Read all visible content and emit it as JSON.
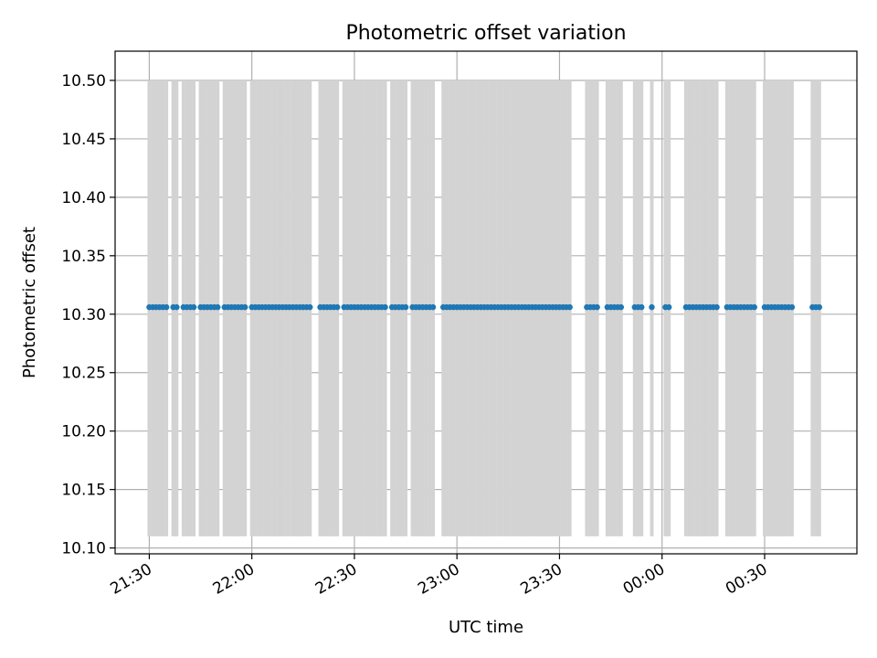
{
  "chart_data": {
    "type": "scatter",
    "title": "Photometric offset variation",
    "xlabel": "UTC time",
    "ylabel": "Photometric offset",
    "xlim": [
      "21:20",
      "00:57"
    ],
    "ylim": [
      10.095,
      10.525
    ],
    "x_tick_labels": [
      "21:30",
      "22:00",
      "22:30",
      "23:00",
      "23:30",
      "00:00",
      "00:30"
    ],
    "y_tick_labels": [
      "10.10",
      "10.15",
      "10.20",
      "10.25",
      "10.30",
      "10.35",
      "10.40",
      "10.45",
      "10.50"
    ],
    "grid": true,
    "colors": {
      "points": "#1f77b4",
      "error_bars": "#d3d3d3",
      "grid": "#b0b0b0"
    },
    "error_bar_range": [
      10.11,
      10.5
    ],
    "series": [
      {
        "y_value": 10.306,
        "x": [
          "21:30",
          "21:31",
          "21:32",
          "21:33",
          "21:34",
          "21:35",
          "21:37",
          "21:38",
          "21:40",
          "21:41",
          "21:42",
          "21:43",
          "21:45",
          "21:46",
          "21:47",
          "21:48",
          "21:49",
          "21:50",
          "21:52",
          "21:53",
          "21:54",
          "21:55",
          "21:56",
          "21:57",
          "21:58",
          "22:00",
          "22:01",
          "22:02",
          "22:03",
          "22:04",
          "22:05",
          "22:06",
          "22:07",
          "22:08",
          "22:09",
          "22:10",
          "22:11",
          "22:12",
          "22:13",
          "22:14",
          "22:15",
          "22:16",
          "22:17",
          "22:20",
          "22:21",
          "22:22",
          "22:23",
          "22:24",
          "22:25",
          "22:27",
          "22:28",
          "22:29",
          "22:30",
          "22:31",
          "22:32",
          "22:33",
          "22:34",
          "22:35",
          "22:36",
          "22:37",
          "22:38",
          "22:39",
          "22:41",
          "22:42",
          "22:43",
          "22:44",
          "22:45",
          "22:47",
          "22:48",
          "22:49",
          "22:50",
          "22:51",
          "22:52",
          "22:53",
          "22:56",
          "22:57",
          "22:58",
          "22:59",
          "23:00",
          "23:01",
          "23:02",
          "23:03",
          "23:04",
          "23:05",
          "23:06",
          "23:07",
          "23:08",
          "23:09",
          "23:10",
          "23:11",
          "23:12",
          "23:13",
          "23:14",
          "23:15",
          "23:16",
          "23:17",
          "23:18",
          "23:19",
          "23:20",
          "23:21",
          "23:22",
          "23:23",
          "23:24",
          "23:25",
          "23:26",
          "23:27",
          "23:28",
          "23:29",
          "23:30",
          "23:31",
          "23:32",
          "23:33",
          "23:38",
          "23:39",
          "23:40",
          "23:41",
          "23:44",
          "23:45",
          "23:46",
          "23:47",
          "23:48",
          "23:52",
          "23:53",
          "23:54",
          "23:57",
          "00:01",
          "00:02",
          "00:07",
          "00:08",
          "00:09",
          "00:10",
          "00:11",
          "00:12",
          "00:13",
          "00:14",
          "00:15",
          "00:16",
          "00:19",
          "00:20",
          "00:21",
          "00:22",
          "00:23",
          "00:24",
          "00:25",
          "00:26",
          "00:27",
          "00:30",
          "00:31",
          "00:32",
          "00:33",
          "00:34",
          "00:35",
          "00:36",
          "00:37",
          "00:38",
          "00:44",
          "00:45",
          "00:46"
        ]
      }
    ],
    "error_bar_x": [
      "21:30",
      "21:31",
      "21:32",
      "21:33",
      "21:34",
      "21:35",
      "21:37",
      "21:38",
      "21:40",
      "21:41",
      "21:42",
      "21:43",
      "21:45",
      "21:46",
      "21:47",
      "21:48",
      "21:49",
      "21:50",
      "21:52",
      "21:53",
      "21:54",
      "21:55",
      "21:56",
      "21:57",
      "21:58",
      "22:00",
      "22:01",
      "22:02",
      "22:03",
      "22:04",
      "22:05",
      "22:06",
      "22:07",
      "22:08",
      "22:09",
      "22:10",
      "22:11",
      "22:12",
      "22:13",
      "22:14",
      "22:15",
      "22:16",
      "22:17",
      "22:20",
      "22:21",
      "22:22",
      "22:23",
      "22:24",
      "22:25",
      "22:27",
      "22:28",
      "22:29",
      "22:30",
      "22:31",
      "22:32",
      "22:33",
      "22:34",
      "22:35",
      "22:36",
      "22:37",
      "22:38",
      "22:39",
      "22:41",
      "22:42",
      "22:43",
      "22:44",
      "22:45",
      "22:47",
      "22:48",
      "22:49",
      "22:50",
      "22:51",
      "22:52",
      "22:53",
      "22:56",
      "22:57",
      "22:58",
      "22:59",
      "23:00",
      "23:01",
      "23:02",
      "23:03",
      "23:04",
      "23:05",
      "23:06",
      "23:07",
      "23:08",
      "23:09",
      "23:10",
      "23:11",
      "23:12",
      "23:13",
      "23:14",
      "23:15",
      "23:16",
      "23:17",
      "23:18",
      "23:19",
      "23:20",
      "23:21",
      "23:22",
      "23:23",
      "23:24",
      "23:25",
      "23:26",
      "23:27",
      "23:28",
      "23:29",
      "23:30",
      "23:31",
      "23:32",
      "23:33",
      "23:38",
      "23:39",
      "23:40",
      "23:41",
      "23:44",
      "23:45",
      "23:46",
      "23:47",
      "23:48",
      "23:52",
      "23:53",
      "23:54",
      "23:57",
      "00:01",
      "00:02",
      "00:07",
      "00:08",
      "00:09",
      "00:10",
      "00:11",
      "00:12",
      "00:13",
      "00:14",
      "00:15",
      "00:16",
      "00:19",
      "00:20",
      "00:21",
      "00:22",
      "00:23",
      "00:24",
      "00:25",
      "00:26",
      "00:27",
      "00:30",
      "00:31",
      "00:32",
      "00:33",
      "00:34",
      "00:35",
      "00:36",
      "00:37",
      "00:38",
      "00:44",
      "00:45",
      "00:46"
    ]
  }
}
